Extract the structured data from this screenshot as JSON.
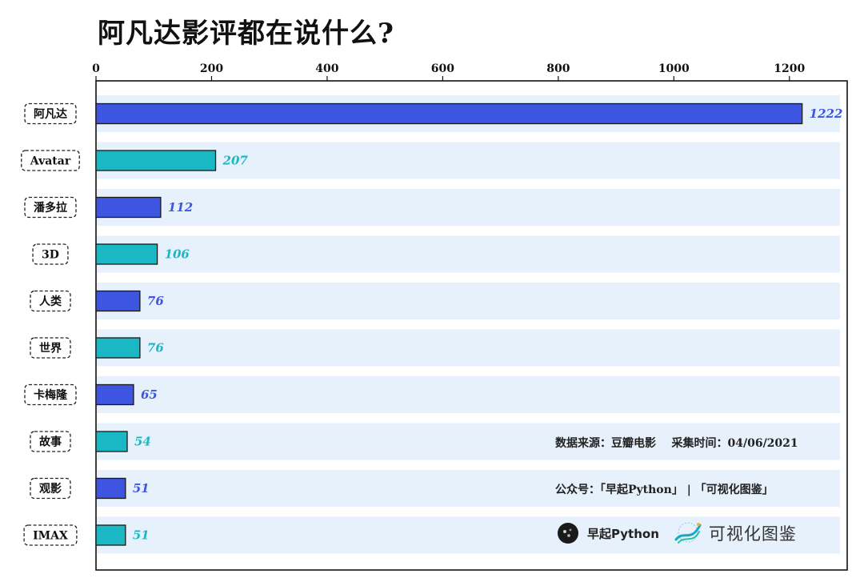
{
  "chart_data": {
    "type": "bar",
    "orientation": "horizontal",
    "title": "阿凡达影评都在说什么?",
    "categories": [
      "阿凡达",
      "Avatar",
      "潘多拉",
      "3D",
      "人类",
      "世界",
      "卡梅隆",
      "故事",
      "观影",
      "IMAX"
    ],
    "values": [
      1222,
      207,
      112,
      106,
      76,
      76,
      65,
      54,
      51,
      51
    ],
    "x_ticks": [
      0,
      200,
      400,
      600,
      800,
      1000,
      1200
    ],
    "xlim": [
      0,
      1300
    ],
    "axis_position": "top",
    "grid": false,
    "bar_colors": [
      "#3d55e0",
      "#1ab8c4"
    ],
    "row_band_color": "#e6f1fb"
  },
  "notes": {
    "source": "数据来源：豆瓣电影    采集时间：04/06/2021",
    "accounts": "公众号：「早起Python」 | 「可视化图鉴」"
  },
  "branding": {
    "brand1_icon": "dark-circle-logo-icon",
    "brand1": "早起Python",
    "brand2_icon": "ribbon-logo-icon",
    "brand2": "可视化图鉴"
  }
}
